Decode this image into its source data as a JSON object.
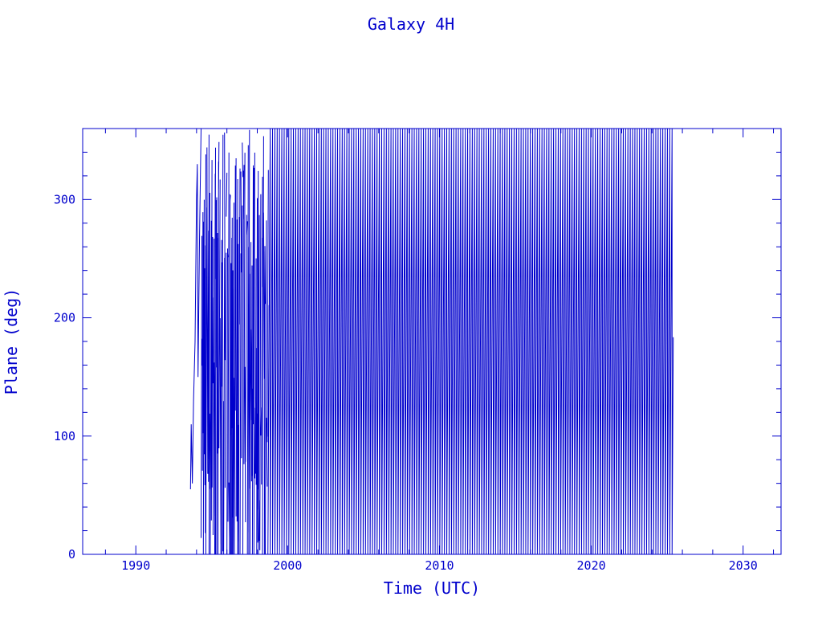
{
  "chart_data": {
    "type": "line",
    "title": "Galaxy 4H",
    "xlabel": "Time (UTC)",
    "ylabel": "Plane (deg)",
    "xlim": [
      1986.5,
      2032.5
    ],
    "ylim": [
      0,
      360
    ],
    "xticks": [
      1990,
      2000,
      2010,
      2020,
      2030
    ],
    "xtick_labels": [
      "1990",
      "2000",
      "2010",
      "2020",
      "2030"
    ],
    "yticks": [
      0,
      100,
      200,
      300
    ],
    "ytick_labels": [
      "0",
      "100",
      "200",
      "300"
    ],
    "grid": false,
    "color": "#0000cc",
    "series": [
      {
        "description": "RAAN-like plane angle drifting 0-360 deg and wrapping; data begins ~1993.6, ends ~2025.4",
        "data_start": 1993.6,
        "data_end": 2025.4,
        "early_irregular_until": 1998.7,
        "wrap_period_years": 0.153,
        "points": [
          [
            1993.6,
            55
          ],
          [
            1993.65,
            110
          ],
          [
            1993.72,
            60
          ],
          [
            1993.8,
            130
          ],
          [
            1993.9,
            180
          ],
          [
            1994.0,
            300
          ],
          [
            1994.05,
            330
          ],
          [
            1994.1,
            150
          ],
          [
            1994.2,
            270
          ],
          [
            1994.3,
            360
          ],
          [
            1995.0,
            360
          ],
          [
            1996.0,
            0
          ],
          [
            1997.0,
            360
          ],
          [
            1998.0,
            0
          ],
          [
            1998.7,
            360
          ],
          [
            1999.0,
            0
          ],
          [
            2000.0,
            360
          ],
          [
            2005.0,
            0
          ],
          [
            2010.0,
            360
          ],
          [
            2015.0,
            0
          ],
          [
            2020.0,
            360
          ],
          [
            2025.0,
            0
          ],
          [
            2025.4,
            75
          ]
        ]
      }
    ]
  }
}
